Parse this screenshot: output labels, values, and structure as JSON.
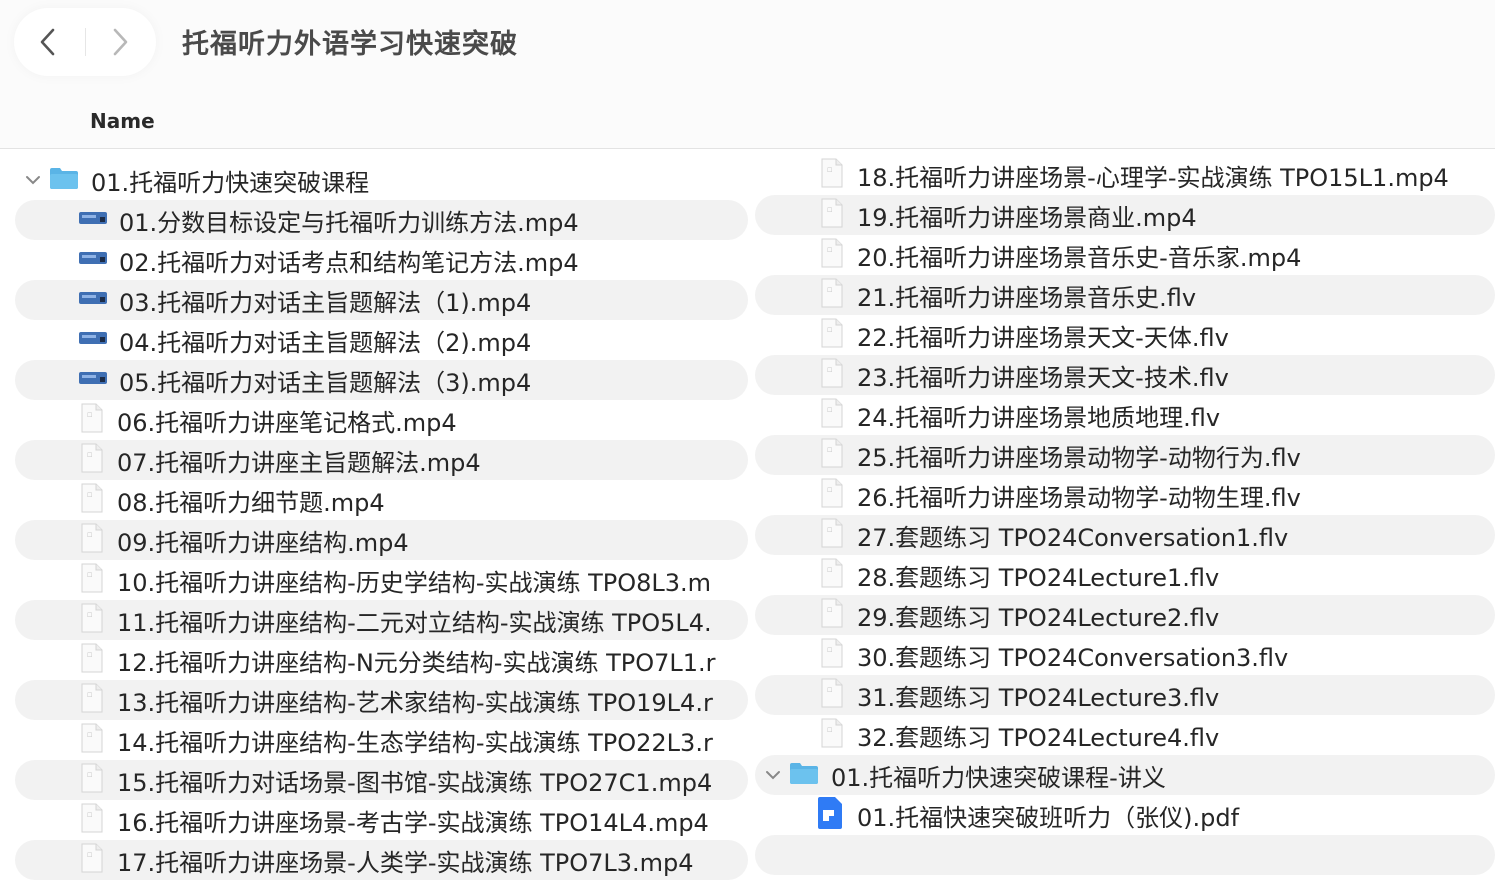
{
  "window": {
    "title": "托福听力外语学习快速突破"
  },
  "nav": {
    "back_icon": "chevron-left-icon",
    "forward_icon": "chevron-right-icon"
  },
  "columns": {
    "name": "Name"
  },
  "colors": {
    "folder": "#5ab4e6",
    "video_icon": "#3f6fb3",
    "pdf_icon": "#2f7bf5",
    "stripe": "#f2f2f2"
  },
  "left_items": [
    {
      "type": "folder",
      "label": "01.托福听力快速突破课程",
      "expanded": true
    },
    {
      "type": "video",
      "label": "01.分数目标设定与托福听力训练方法.mp4"
    },
    {
      "type": "video",
      "label": "02.托福听力对话考点和结构笔记方法.mp4"
    },
    {
      "type": "video",
      "label": "03.托福听力对话主旨题解法（1).mp4"
    },
    {
      "type": "video",
      "label": "04.托福听力对话主旨题解法（2).mp4"
    },
    {
      "type": "video",
      "label": "05.托福听力对话主旨题解法（3).mp4"
    },
    {
      "type": "file",
      "label": "06.托福听力讲座笔记格式.mp4"
    },
    {
      "type": "file",
      "label": "07.托福听力讲座主旨题解法.mp4"
    },
    {
      "type": "file",
      "label": "08.托福听力细节题.mp4"
    },
    {
      "type": "file",
      "label": "09.托福听力讲座结构.mp4"
    },
    {
      "type": "file",
      "label": "10.托福听力讲座结构-历史学结构-实战演练 TPO8L3.m"
    },
    {
      "type": "file",
      "label": "11.托福听力讲座结构-二元对立结构-实战演练 TPO5L4."
    },
    {
      "type": "file",
      "label": "12.托福听力讲座结构-N元分类结构-实战演练 TPO7L1.r"
    },
    {
      "type": "file",
      "label": "13.托福听力讲座结构-艺术家结构-实战演练 TPO19L4.r"
    },
    {
      "type": "file",
      "label": "14.托福听力讲座结构-生态学结构-实战演练 TPO22L3.r"
    },
    {
      "type": "file",
      "label": "15.托福听力对话场景-图书馆-实战演练 TPO27C1.mp4"
    },
    {
      "type": "file",
      "label": "16.托福听力讲座场景-考古学-实战演练 TPO14L4.mp4"
    },
    {
      "type": "file",
      "label": "17.托福听力讲座场景-人类学-实战演练 TPO7L3.mp4"
    }
  ],
  "right_items": [
    {
      "type": "file",
      "label": "18.托福听力讲座场景-心理学-实战演练 TPO15L1.mp4"
    },
    {
      "type": "file",
      "label": "19.托福听力讲座场景商业.mp4"
    },
    {
      "type": "file",
      "label": "20.托福听力讲座场景音乐史-音乐家.mp4"
    },
    {
      "type": "file",
      "label": "21.托福听力讲座场景音乐史.flv"
    },
    {
      "type": "file",
      "label": "22.托福听力讲座场景天文-天体.flv"
    },
    {
      "type": "file",
      "label": "23.托福听力讲座场景天文-技术.flv"
    },
    {
      "type": "file",
      "label": "24.托福听力讲座场景地质地理.flv"
    },
    {
      "type": "file",
      "label": "25.托福听力讲座场景动物学-动物行为.flv"
    },
    {
      "type": "file",
      "label": "26.托福听力讲座场景动物学-动物生理.flv"
    },
    {
      "type": "file",
      "label": "27.套题练习 TPO24Conversation1.flv"
    },
    {
      "type": "file",
      "label": "28.套题练习 TPO24Lecture1.flv"
    },
    {
      "type": "file",
      "label": "29.套题练习 TPO24Lecture2.flv"
    },
    {
      "type": "file",
      "label": "30.套题练习 TPO24Conversation3.flv"
    },
    {
      "type": "file",
      "label": "31.套题练习 TPO24Lecture3.flv"
    },
    {
      "type": "file",
      "label": "32.套题练习 TPO24Lecture4.flv"
    },
    {
      "type": "folder",
      "label": "01.托福听力快速突破课程-讲义",
      "expanded": true
    },
    {
      "type": "pdf",
      "label": "01.托福快速突破班听力（张仪).pdf"
    },
    {
      "type": "empty",
      "label": ""
    }
  ]
}
